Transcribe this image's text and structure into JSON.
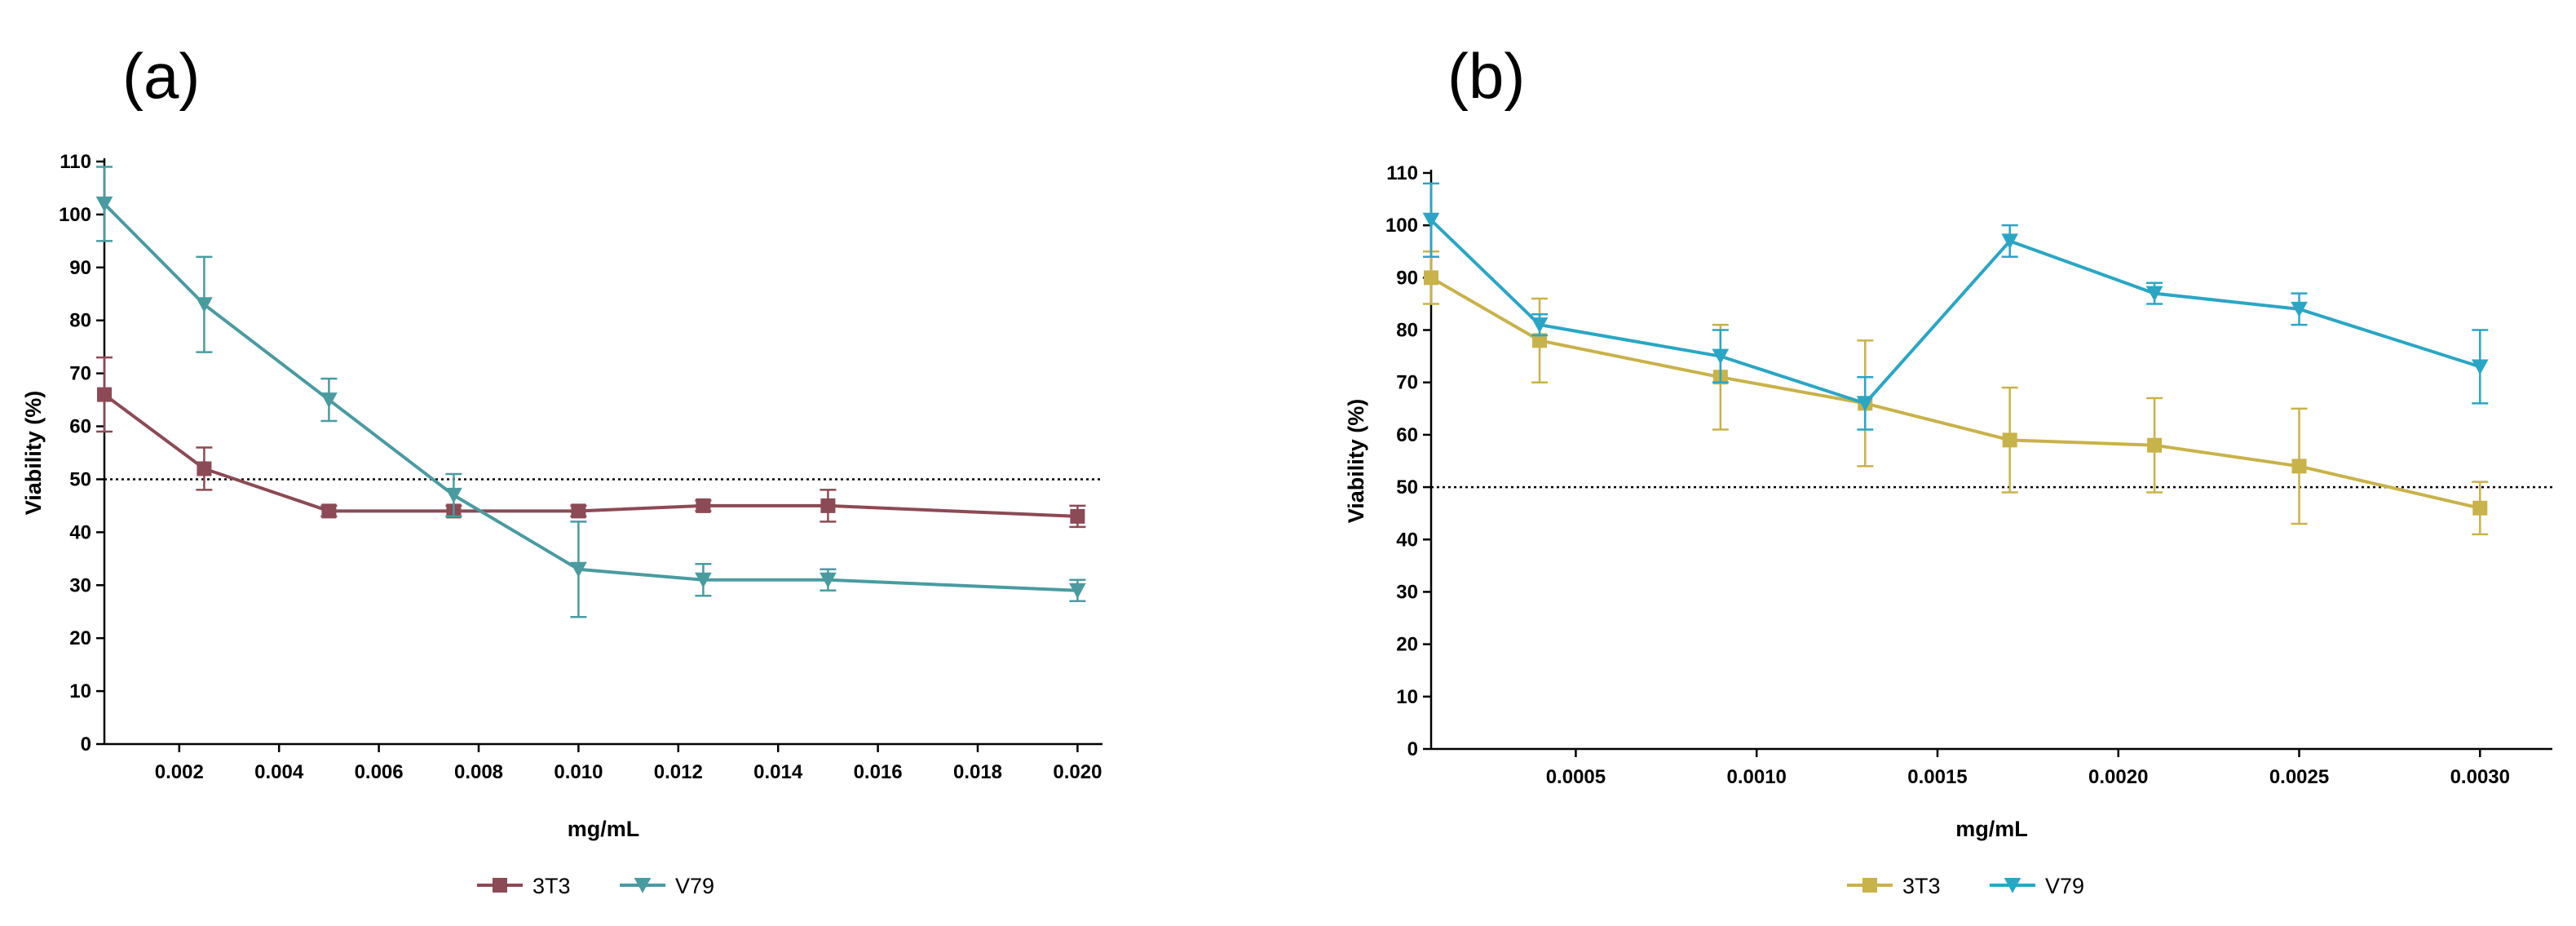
{
  "chart_data": [
    {
      "type": "line",
      "panel_label": "(a)",
      "xlabel": "mg/mL",
      "ylabel": "Viability (%)",
      "xlim": [
        0.0005,
        0.0205
      ],
      "ylim": [
        0,
        110
      ],
      "x_ticks": [
        0.002,
        0.004,
        0.006,
        0.008,
        0.01,
        0.012,
        0.014,
        0.016,
        0.018,
        0.02
      ],
      "x_tick_labels": [
        "0.002",
        "0.004",
        "0.006",
        "0.008",
        "0.010",
        "0.012",
        "0.014",
        "0.016",
        "0.018",
        "0.020"
      ],
      "y_ticks": [
        0,
        10,
        20,
        30,
        40,
        50,
        60,
        70,
        80,
        90,
        100,
        110
      ],
      "y_tick_labels": [
        "0",
        "10",
        "20",
        "30",
        "40",
        "50",
        "60",
        "70",
        "80",
        "90",
        "100",
        "110"
      ],
      "reference_line": 50,
      "legend_position": "bottom-center",
      "series": [
        {
          "name": "3T3",
          "color": "#8b4a55",
          "marker": "square",
          "x": [
            0.0005,
            0.0025,
            0.005,
            0.0075,
            0.01,
            0.0125,
            0.015,
            0.02
          ],
          "values": [
            66,
            52,
            44,
            44,
            44,
            45,
            45,
            43
          ],
          "errors": [
            7,
            4,
            1,
            1,
            1,
            1,
            3,
            2
          ]
        },
        {
          "name": "V79",
          "color": "#4a9ba0",
          "marker": "triangle-down",
          "x": [
            0.0005,
            0.0025,
            0.005,
            0.0075,
            0.01,
            0.0125,
            0.015,
            0.02
          ],
          "values": [
            102,
            83,
            65,
            47,
            33,
            31,
            31,
            29
          ],
          "errors": [
            7,
            9,
            4,
            4,
            9,
            3,
            2,
            2
          ]
        }
      ]
    },
    {
      "type": "line",
      "panel_label": "(b)",
      "xlabel": "mg/mL",
      "ylabel": "Viability (%)",
      "xlim": [
        0.0001,
        0.0032
      ],
      "ylim": [
        0,
        110
      ],
      "x_ticks": [
        0.0005,
        0.001,
        0.0015,
        0.002,
        0.0025,
        0.003
      ],
      "x_tick_labels": [
        "0.0005",
        "0.0010",
        "0.0015",
        "0.0020",
        "0.0025",
        "0.0030"
      ],
      "y_ticks": [
        0,
        10,
        20,
        30,
        40,
        50,
        60,
        70,
        80,
        90,
        100,
        110
      ],
      "y_tick_labels": [
        "0",
        "10",
        "20",
        "30",
        "40",
        "50",
        "60",
        "70",
        "80",
        "90",
        "100",
        "110"
      ],
      "reference_line": 50,
      "legend_position": "bottom-center",
      "series": [
        {
          "name": "3T3",
          "color": "#c8b24a",
          "marker": "square",
          "x": [
            0.0001,
            0.0004,
            0.0009,
            0.0013,
            0.0017,
            0.0021,
            0.0025,
            0.003
          ],
          "values": [
            90,
            78,
            71,
            66,
            59,
            58,
            54,
            46
          ],
          "errors": [
            5,
            8,
            10,
            12,
            10,
            9,
            11,
            5
          ]
        },
        {
          "name": "V79",
          "color": "#2aa6c4",
          "marker": "triangle-down",
          "x": [
            0.0001,
            0.0004,
            0.0009,
            0.0013,
            0.0017,
            0.0021,
            0.0025,
            0.003
          ],
          "values": [
            101,
            81,
            75,
            66,
            97,
            87,
            84,
            73
          ],
          "errors": [
            7,
            2,
            5,
            5,
            3,
            2,
            3,
            7
          ]
        }
      ]
    }
  ]
}
